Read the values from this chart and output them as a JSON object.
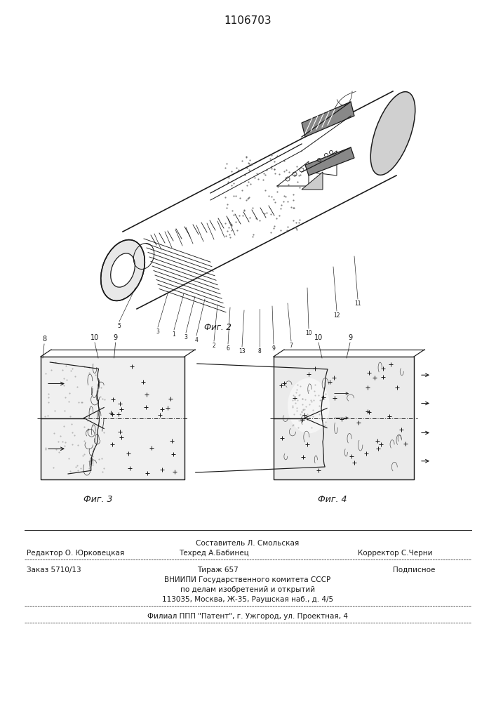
{
  "title": "1106703",
  "fig2_caption": "Фиг. 2",
  "fig3_caption": "Фиг. 3",
  "fig4_caption": "Фиг. 4",
  "footer_line1_center": "Составитель Л. Смольская",
  "footer_line2_left": "Редактор О. Юрковецкая",
  "footer_line2_center": "Техред А.Бабинец",
  "footer_line2_right": "Корректор С.Черни",
  "footer_line3_left": "Заказ 5710/13",
  "footer_line3_center": "Тираж 657",
  "footer_line3_right": "Подписное",
  "footer_line4": "ВНИИПИ Государственного комитета СССР",
  "footer_line5": "по делам изобретений и открытий",
  "footer_line6": "113035, Москва, Ж-35, Раушская наб., д. 4/5",
  "footer_last": "Филиал ППП \"Патент\", г. Ужгород, ул. Проектная, 4",
  "line_color": "#1a1a1a"
}
